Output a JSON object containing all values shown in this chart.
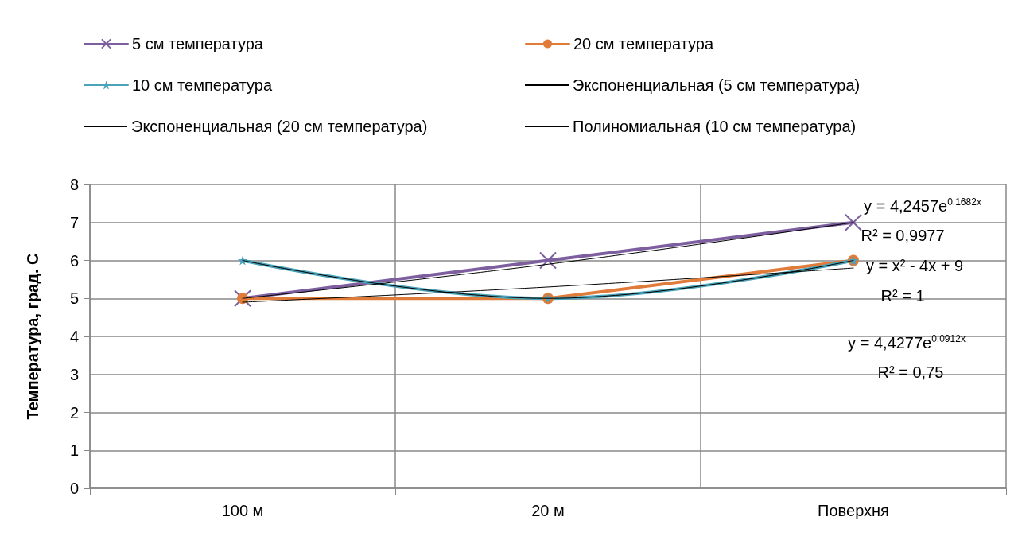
{
  "chart_data": {
    "type": "line",
    "ylabel": "Температура, град. С",
    "categories": [
      "100 м",
      "20 м",
      "Поверхня"
    ],
    "series": [
      {
        "name": "5 см температура",
        "color": "#7d5fa0",
        "values": [
          5,
          6,
          7
        ],
        "marker": "cross"
      },
      {
        "name": "20 см температура",
        "color": "#e07b39",
        "values": [
          5,
          5,
          6
        ],
        "marker": "circle"
      },
      {
        "name": "10 см температура",
        "color": "#4aa3b8",
        "values": [
          6,
          5,
          6
        ],
        "marker": "star"
      },
      {
        "name": "Экспоненциальная (5 см температура)",
        "color": "#000000",
        "values": [
          5.0,
          5.9,
          7.0
        ],
        "marker": "none"
      },
      {
        "name": "Экспоненциальная (20 см температура)",
        "color": "#000000",
        "values": [
          4.9,
          5.3,
          5.8
        ],
        "marker": "none"
      },
      {
        "name": "Полиномиальная (10 см температура)",
        "color": "#000000",
        "values": [
          6,
          5,
          6
        ],
        "marker": "none"
      }
    ],
    "ylim": [
      0,
      8
    ],
    "yticks": [
      0,
      1,
      2,
      3,
      4,
      5,
      6,
      7,
      8
    ],
    "grid": true,
    "legend": "top",
    "annotations": [
      "y = 4,2457e$^{0,1682x}$",
      "R² = 0,9977",
      "y = x² - 4x + 9",
      "R² = 1",
      "y = 4,4277e$^{0,0912x}$",
      "R² = 0,75"
    ]
  }
}
